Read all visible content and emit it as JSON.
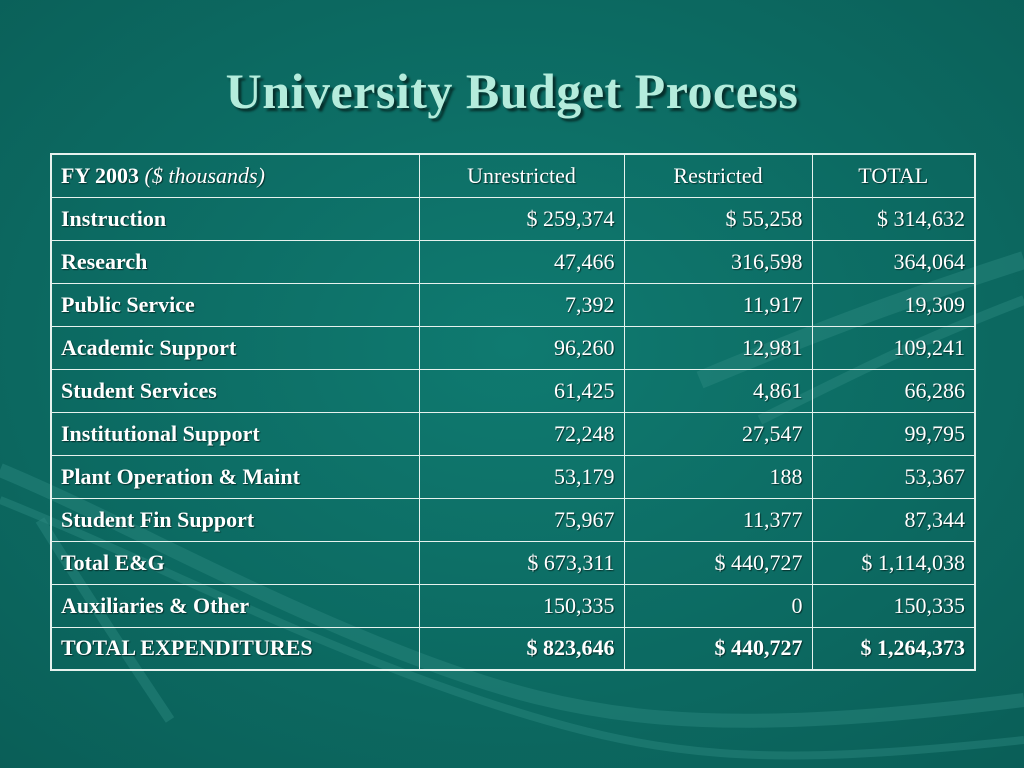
{
  "slide": {
    "title": "University Budget Process"
  },
  "table": {
    "header": {
      "label": "FY 2003",
      "sublabel": "($ thousands)",
      "columns": [
        "Unrestricted",
        "Restricted",
        "TOTAL"
      ]
    },
    "rows": [
      {
        "label": "Instruction",
        "unrestricted": "$ 259,374",
        "restricted": "$ 55,258",
        "total": "$ 314,632"
      },
      {
        "label": "Research",
        "unrestricted": "47,466",
        "restricted": "316,598",
        "total": "364,064"
      },
      {
        "label": "Public Service",
        "unrestricted": "7,392",
        "restricted": "11,917",
        "total": "19,309"
      },
      {
        "label": "Academic Support",
        "unrestricted": "96,260",
        "restricted": "12,981",
        "total": "109,241"
      },
      {
        "label": "Student Services",
        "unrestricted": "61,425",
        "restricted": "4,861",
        "total": "66,286"
      },
      {
        "label": "Institutional Support",
        "unrestricted": "72,248",
        "restricted": "27,547",
        "total": "99,795"
      },
      {
        "label": "Plant Operation & Maint",
        "unrestricted": "53,179",
        "restricted": "188",
        "total": "53,367"
      },
      {
        "label": "Student Fin Support",
        "unrestricted": "75,967",
        "restricted": "11,377",
        "total": "87,344"
      },
      {
        "label": "Total E&G",
        "unrestricted": "$ 673,311",
        "restricted": "$ 440,727",
        "total": "$ 1,114,038"
      },
      {
        "label": "Auxiliaries & Other",
        "unrestricted": "150,335",
        "restricted": "0",
        "total": "150,335"
      },
      {
        "label": "TOTAL EXPENDITURES",
        "unrestricted": "$ 823,646",
        "restricted": "$ 440,727",
        "total": "$ 1,264,373"
      }
    ]
  },
  "colors": {
    "background": "#0c6b63",
    "title": "#b4ecdc",
    "text": "#ffffff",
    "grid": "#e6f2ee"
  }
}
